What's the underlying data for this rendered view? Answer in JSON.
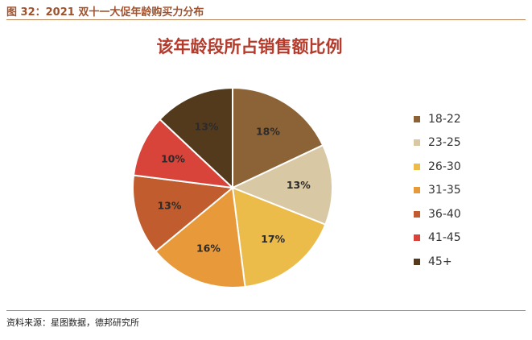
{
  "header": {
    "figure_title": "图 32：2021 双十一大促年龄购买力分布"
  },
  "footer": {
    "source": "资料来源：星图数据，德邦研究所"
  },
  "chart_data": {
    "type": "pie",
    "title": "该年龄段所占销售额比例",
    "categories": [
      "18-22",
      "23-25",
      "26-30",
      "31-35",
      "36-40",
      "41-45",
      "45+"
    ],
    "values": [
      18,
      13,
      17,
      16,
      13,
      10,
      13
    ],
    "value_labels": [
      "18%",
      "13%",
      "17%",
      "16%",
      "13%",
      "10%",
      "13%"
    ],
    "colors": [
      "#8c6336",
      "#d9c8a4",
      "#ecbc4a",
      "#e89a3a",
      "#c05c2e",
      "#d8443a",
      "#533a1c"
    ],
    "legend_placement": "right"
  }
}
